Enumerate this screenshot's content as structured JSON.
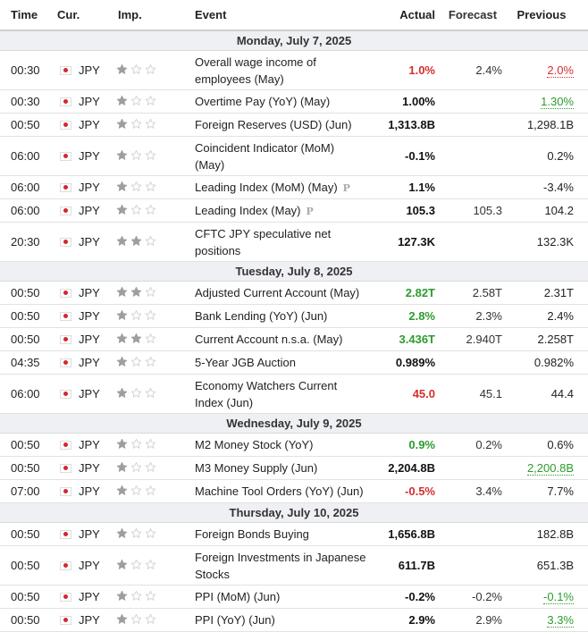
{
  "headers": {
    "time": "Time",
    "currency": "Cur.",
    "importance": "Imp.",
    "event": "Event",
    "actual": "Actual",
    "forecast": "Forecast",
    "previous": "Previous"
  },
  "colors": {
    "negative": "#d32f2f",
    "positive": "#2e9b2e",
    "star_filled": "#9e9e9e",
    "star_empty": "#cfcfcf",
    "day_header_bg": "#eef0f3"
  },
  "icons": {
    "flag": "japan-flag-icon",
    "star": "star-icon",
    "preliminary": "preliminary-p-icon"
  },
  "preliminary_badge": "P",
  "days": [
    {
      "date": "Monday, July 7, 2025",
      "events": [
        {
          "time": "00:30",
          "cur": "JPY",
          "imp": 1,
          "event": "Overall wage income of employees (May)",
          "actual": "1.0%",
          "actual_color": "neg",
          "forecast": "2.4%",
          "previous": "2.0%",
          "prev_revised": "neg",
          "prelim": false,
          "tall": true
        },
        {
          "time": "00:30",
          "cur": "JPY",
          "imp": 1,
          "event": "Overtime Pay (YoY) (May)",
          "actual": "1.00%",
          "actual_color": "neutral",
          "forecast": "",
          "previous": "1.30%",
          "prev_revised": "pos",
          "prelim": false,
          "tall": false
        },
        {
          "time": "00:50",
          "cur": "JPY",
          "imp": 1,
          "event": "Foreign Reserves (USD) (Jun)",
          "actual": "1,313.8B",
          "actual_color": "neutral",
          "forecast": "",
          "previous": "1,298.1B",
          "prev_revised": "",
          "prelim": false,
          "tall": false
        },
        {
          "time": "06:00",
          "cur": "JPY",
          "imp": 1,
          "event": "Coincident Indicator (MoM) (May)",
          "actual": "-0.1%",
          "actual_color": "neutral",
          "forecast": "",
          "previous": "0.2%",
          "prev_revised": "",
          "prelim": false,
          "tall": true
        },
        {
          "time": "06:00",
          "cur": "JPY",
          "imp": 1,
          "event": "Leading Index (MoM) (May)",
          "actual": "1.1%",
          "actual_color": "neutral",
          "forecast": "",
          "previous": "-3.4%",
          "prev_revised": "",
          "prelim": true,
          "tall": false
        },
        {
          "time": "06:00",
          "cur": "JPY",
          "imp": 1,
          "event": "Leading Index (May)",
          "actual": "105.3",
          "actual_color": "neutral",
          "forecast": "105.3",
          "previous": "104.2",
          "prev_revised": "",
          "prelim": true,
          "tall": false
        },
        {
          "time": "20:30",
          "cur": "JPY",
          "imp": 2,
          "event": "CFTC JPY speculative net positions",
          "actual": "127.3K",
          "actual_color": "neutral",
          "forecast": "",
          "previous": "132.3K",
          "prev_revised": "",
          "prelim": false,
          "tall": true
        }
      ]
    },
    {
      "date": "Tuesday, July 8, 2025",
      "events": [
        {
          "time": "00:50",
          "cur": "JPY",
          "imp": 2,
          "event": "Adjusted Current Account (May)",
          "actual": "2.82T",
          "actual_color": "pos",
          "forecast": "2.58T",
          "previous": "2.31T",
          "prev_revised": "",
          "prelim": false,
          "tall": false
        },
        {
          "time": "00:50",
          "cur": "JPY",
          "imp": 1,
          "event": "Bank Lending (YoY) (Jun)",
          "actual": "2.8%",
          "actual_color": "pos",
          "forecast": "2.3%",
          "previous": "2.4%",
          "prev_revised": "",
          "prelim": false,
          "tall": false
        },
        {
          "time": "00:50",
          "cur": "JPY",
          "imp": 2,
          "event": "Current Account n.s.a. (May)",
          "actual": "3.436T",
          "actual_color": "pos",
          "forecast": "2.940T",
          "previous": "2.258T",
          "prev_revised": "",
          "prelim": false,
          "tall": false
        },
        {
          "time": "04:35",
          "cur": "JPY",
          "imp": 1,
          "event": "5-Year JGB Auction",
          "actual": "0.989%",
          "actual_color": "neutral",
          "forecast": "",
          "previous": "0.982%",
          "prev_revised": "",
          "prelim": false,
          "tall": false
        },
        {
          "time": "06:00",
          "cur": "JPY",
          "imp": 1,
          "event": "Economy Watchers Current Index (Jun)",
          "actual": "45.0",
          "actual_color": "neg",
          "forecast": "45.1",
          "previous": "44.4",
          "prev_revised": "",
          "prelim": false,
          "tall": true
        }
      ]
    },
    {
      "date": "Wednesday, July 9, 2025",
      "events": [
        {
          "time": "00:50",
          "cur": "JPY",
          "imp": 1,
          "event": "M2 Money Stock (YoY)",
          "actual": "0.9%",
          "actual_color": "pos",
          "forecast": "0.2%",
          "previous": "0.6%",
          "prev_revised": "",
          "prelim": false,
          "tall": false
        },
        {
          "time": "00:50",
          "cur": "JPY",
          "imp": 1,
          "event": "M3 Money Supply (Jun)",
          "actual": "2,204.8B",
          "actual_color": "neutral",
          "forecast": "",
          "previous": "2,200.8B",
          "prev_revised": "pos",
          "prelim": false,
          "tall": false
        },
        {
          "time": "07:00",
          "cur": "JPY",
          "imp": 1,
          "event": "Machine Tool Orders (YoY) (Jun)",
          "actual": "-0.5%",
          "actual_color": "neg",
          "forecast": "3.4%",
          "previous": "7.7%",
          "prev_revised": "",
          "prelim": false,
          "tall": false
        }
      ]
    },
    {
      "date": "Thursday, July 10, 2025",
      "events": [
        {
          "time": "00:50",
          "cur": "JPY",
          "imp": 1,
          "event": "Foreign Bonds Buying",
          "actual": "1,656.8B",
          "actual_color": "neutral",
          "forecast": "",
          "previous": "182.8B",
          "prev_revised": "",
          "prelim": false,
          "tall": false
        },
        {
          "time": "00:50",
          "cur": "JPY",
          "imp": 1,
          "event": "Foreign Investments in Japanese Stocks",
          "actual": "611.7B",
          "actual_color": "neutral",
          "forecast": "",
          "previous": "651.3B",
          "prev_revised": "",
          "prelim": false,
          "tall": true
        },
        {
          "time": "00:50",
          "cur": "JPY",
          "imp": 1,
          "event": "PPI (MoM) (Jun)",
          "actual": "-0.2%",
          "actual_color": "neutral",
          "forecast": "-0.2%",
          "previous": "-0.1%",
          "prev_revised": "pos",
          "prelim": false,
          "tall": false
        },
        {
          "time": "00:50",
          "cur": "JPY",
          "imp": 1,
          "event": "PPI (YoY) (Jun)",
          "actual": "2.9%",
          "actual_color": "neutral",
          "forecast": "2.9%",
          "previous": "3.3%",
          "prev_revised": "pos",
          "prelim": false,
          "tall": false
        }
      ]
    }
  ]
}
